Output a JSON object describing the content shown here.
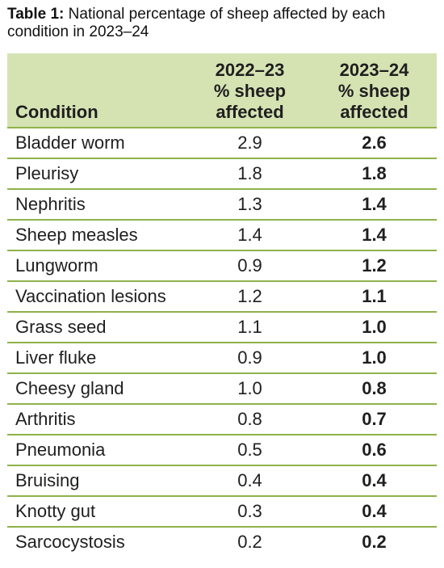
{
  "caption": {
    "label": "Table 1:",
    "text": " National percentage of sheep affected by each condition in 2023–24"
  },
  "table": {
    "headers": {
      "condition": "Condition",
      "prev_year": "2022–23",
      "prev_sub": "% sheep affected",
      "curr_year": "2023–24",
      "curr_sub": "% sheep affected"
    },
    "rows": [
      {
        "condition": "Bladder worm",
        "prev": "2.9",
        "curr": "2.6"
      },
      {
        "condition": "Pleurisy",
        "prev": "1.8",
        "curr": "1.8"
      },
      {
        "condition": "Nephritis",
        "prev": "1.3",
        "curr": "1.4"
      },
      {
        "condition": "Sheep measles",
        "prev": "1.4",
        "curr": "1.4"
      },
      {
        "condition": "Lungworm",
        "prev": "0.9",
        "curr": "1.2"
      },
      {
        "condition": "Vaccination lesions",
        "prev": "1.2",
        "curr": "1.1"
      },
      {
        "condition": "Grass seed",
        "prev": "1.1",
        "curr": "1.0"
      },
      {
        "condition": "Liver fluke",
        "prev": "0.9",
        "curr": "1.0"
      },
      {
        "condition": "Cheesy gland",
        "prev": "1.0",
        "curr": "0.8"
      },
      {
        "condition": "Arthritis",
        "prev": "0.8",
        "curr": "0.7"
      },
      {
        "condition": "Pneumonia",
        "prev": "0.5",
        "curr": "0.6"
      },
      {
        "condition": "Bruising",
        "prev": "0.4",
        "curr": "0.4"
      },
      {
        "condition": "Knotty gut",
        "prev": "0.3",
        "curr": "0.4"
      },
      {
        "condition": "Sarcocystosis",
        "prev": "0.2",
        "curr": "0.2"
      }
    ]
  },
  "colors": {
    "header_bg": "#d5e3b3",
    "rule": "#8fb24a"
  }
}
